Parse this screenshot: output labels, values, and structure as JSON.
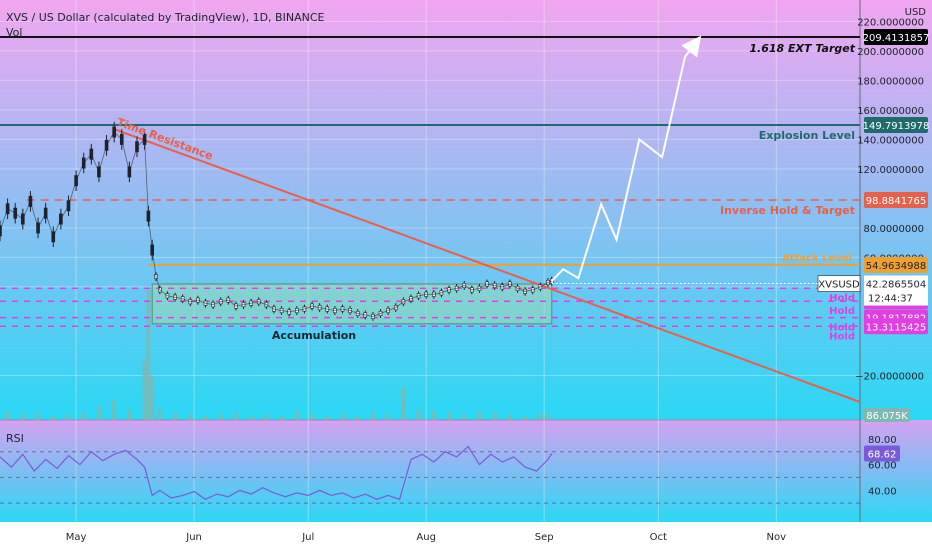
{
  "header": {
    "title": "XVS / US Dollar (calculated by TradingView), 1D, BINANCE",
    "volume_label": "Vol",
    "rsi_label": "RSI",
    "currency": "USD"
  },
  "colors": {
    "bg_top": "#f1a6f0",
    "bg_bottom": "#2ad8f4",
    "candle": "#1e222d",
    "resistance": "#e8604a",
    "explosion": "#1f6b6b",
    "inverse": "#e8604a",
    "attack": "#f0a030",
    "hold": "#e040e0",
    "projection": "#ffffff",
    "box": "#9cd8b4",
    "volume": "#7fb8b0",
    "rsi": "#7b5ad8",
    "target": "#111111"
  },
  "chart_data": [
    {
      "type": "line",
      "title": "XVS / US Dollar (calculated by TradingView), 1D, BINANCE",
      "ylabel": "USD",
      "ylim": [
        -38,
        225
      ],
      "x_ticks": [
        "May",
        "Jun",
        "Jul",
        "Aug",
        "Sep",
        "Oct",
        "Nov"
      ],
      "x_tick_days": [
        0,
        31,
        61,
        92,
        123,
        153,
        184
      ],
      "x_range_days": [
        -20,
        206
      ],
      "y_ticks": [
        220,
        200,
        180,
        160,
        140,
        120,
        80,
        60,
        40,
        -20
      ],
      "y_tick_labels": [
        "220.0000000",
        "200.0000000",
        "180.0000000",
        "160.0000000",
        "140.0000000",
        "120.0000000",
        "80.0000000",
        "60.0000000",
        "40.0000000",
        "−20.0000000"
      ],
      "series": [
        {
          "kind": "price",
          "x": [
            -20,
            -18,
            -16,
            -14,
            -12,
            -10,
            -8,
            -6,
            -4,
            -2,
            0,
            2,
            4,
            6,
            8,
            10,
            12,
            14,
            16,
            18,
            19,
            20,
            21,
            22,
            24,
            26,
            28,
            30,
            32,
            34,
            36,
            38,
            40,
            42,
            44,
            46,
            48,
            50,
            52,
            54,
            56,
            58,
            60,
            62,
            64,
            66,
            68,
            70,
            72,
            74,
            76,
            78,
            80,
            82,
            84,
            86,
            88,
            90,
            92,
            94,
            96,
            98,
            100,
            102,
            104,
            106,
            108,
            110,
            112,
            114,
            116,
            118,
            120,
            122,
            124,
            125
          ],
          "values": [
            78,
            93,
            90,
            86,
            98,
            80,
            90,
            74,
            86,
            95,
            112,
            124,
            130,
            118,
            136,
            145,
            140,
            118,
            135,
            140,
            88,
            65,
            47,
            38,
            34,
            33,
            32,
            30,
            31,
            29,
            28,
            30,
            31,
            27,
            28,
            29,
            30,
            28,
            25,
            24,
            23,
            24,
            25,
            27,
            26,
            25,
            24,
            25,
            24,
            22,
            21,
            20,
            22,
            24,
            26,
            30,
            32,
            34,
            35,
            35,
            36,
            38,
            39,
            41,
            38,
            39,
            42,
            41,
            40,
            42,
            39,
            37,
            38,
            40,
            43,
            44
          ]
        },
        {
          "kind": "projection",
          "x": [
            125,
            128,
            132,
            138,
            142,
            148,
            154,
            160,
            163
          ],
          "values": [
            44,
            52,
            46,
            96,
            72,
            140,
            128,
            196,
            206
          ]
        }
      ],
      "levels": [
        {
          "name": "1.618 EXT Target",
          "value": 209.4131857,
          "label": "209.4131857"
        },
        {
          "name": "Explosion Level",
          "value": 149.7913978,
          "label": "149.7913978"
        },
        {
          "name": "Inverse Hold & Target",
          "value": 98.8841765,
          "label": "98.8841765"
        },
        {
          "name": "Attack Level",
          "value": 54.9634988,
          "label": "54.9634988"
        },
        {
          "name": "Hold",
          "value": 39.1135862,
          "label": "39.1135862"
        },
        {
          "name": "Hold",
          "value": 30.3216224,
          "label": "30.3216224"
        },
        {
          "name": "Hold",
          "value": 19.1817882,
          "label": "19.1817882"
        },
        {
          "name": "Hold",
          "value": 13.3115425,
          "label": "13.3115425"
        }
      ],
      "trendline": {
        "name": "Time Resistance",
        "x": [
          10,
          206
        ],
        "values": [
          147,
          -38
        ]
      },
      "accumulation_box": {
        "name": "Accumulation",
        "x": [
          20,
          125
        ],
        "values": [
          15,
          42
        ]
      },
      "current_price": {
        "symbol": "XVSUSD",
        "value": 42.2865504,
        "label": "42.2865504",
        "countdown": "12:44:37"
      },
      "volume": {
        "x": [
          -18,
          -14,
          -10,
          -6,
          -2,
          2,
          6,
          10,
          14,
          18,
          19,
          20,
          22,
          26,
          30,
          34,
          38,
          42,
          46,
          50,
          54,
          58,
          62,
          66,
          70,
          74,
          78,
          82,
          86,
          90,
          94,
          98,
          102,
          106,
          110,
          114,
          118,
          122,
          124
        ],
        "values": [
          6,
          4,
          5,
          3,
          4,
          5,
          9,
          14,
          7,
          40,
          88,
          30,
          8,
          5,
          4,
          3,
          4,
          5,
          3,
          4,
          3,
          6,
          4,
          3,
          4,
          3,
          5,
          4,
          22,
          7,
          6,
          5,
          4,
          6,
          5,
          4,
          3,
          5,
          4
        ],
        "last_label": "86.075K"
      }
    },
    {
      "type": "line",
      "title": "RSI",
      "ylim": [
        20,
        90
      ],
      "y_ticks": [
        80,
        60,
        40
      ],
      "y_tick_labels": [
        "80.00",
        "60.00",
        "40.00"
      ],
      "bands": [
        70,
        50,
        30
      ],
      "series": [
        {
          "name": "RSI",
          "x": [
            -20,
            -17,
            -14,
            -11,
            -8,
            -5,
            -2,
            1,
            4,
            7,
            10,
            13,
            16,
            18,
            20,
            22,
            25,
            28,
            31,
            34,
            37,
            40,
            43,
            46,
            49,
            52,
            55,
            58,
            61,
            64,
            67,
            70,
            73,
            76,
            79,
            82,
            85,
            88,
            91,
            94,
            97,
            100,
            103,
            106,
            109,
            112,
            115,
            118,
            121,
            124,
            125
          ],
          "values": [
            66,
            58,
            68,
            55,
            64,
            57,
            67,
            60,
            70,
            63,
            68,
            71,
            64,
            58,
            36,
            40,
            34,
            36,
            39,
            33,
            37,
            35,
            40,
            37,
            42,
            38,
            35,
            38,
            36,
            40,
            36,
            38,
            34,
            37,
            33,
            36,
            33,
            64,
            68,
            62,
            70,
            66,
            74,
            60,
            68,
            62,
            66,
            58,
            55,
            64,
            68.62
          ],
          "last_label": "68.62"
        }
      ]
    }
  ]
}
